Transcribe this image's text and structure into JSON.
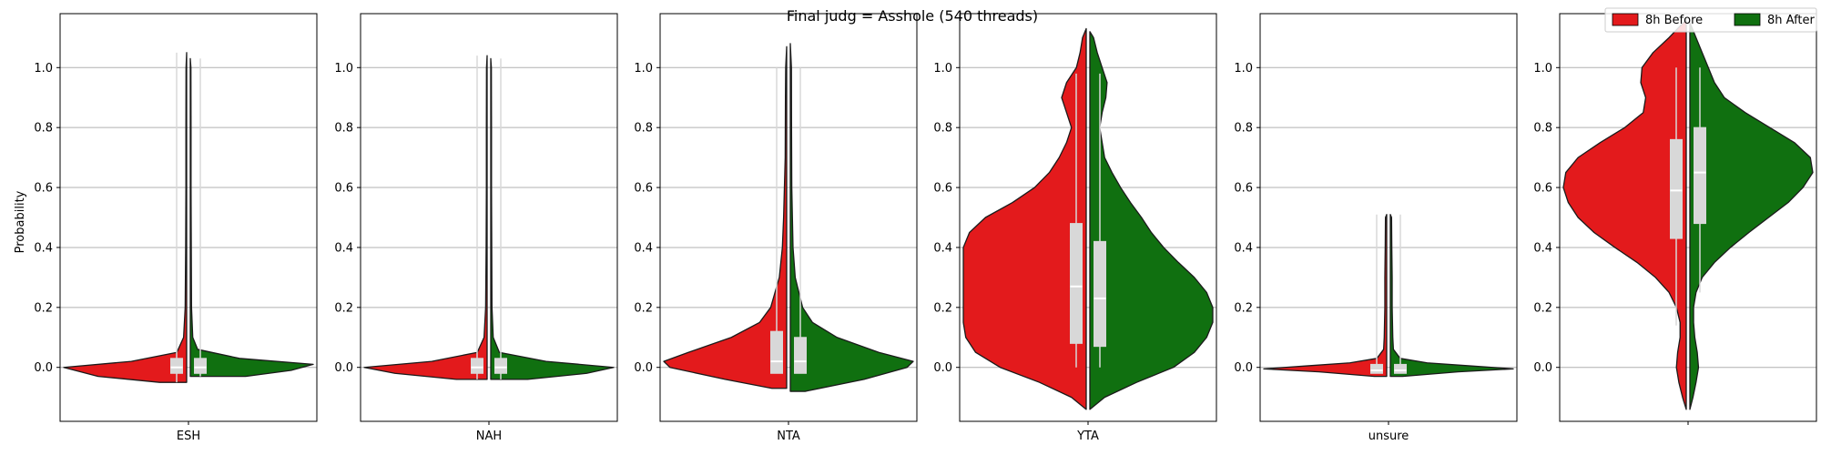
{
  "chart_data": {
    "type": "violin",
    "title": "Final judg = Asshole (540 threads)",
    "ylabel": "Probability",
    "ylim": [
      -0.18,
      1.18
    ],
    "yticks": [
      0.0,
      0.2,
      0.4,
      0.6,
      0.8,
      1.0
    ],
    "ytick_labels": [
      "0.0",
      "0.2",
      "0.4",
      "0.6",
      "0.8",
      "1.0"
    ],
    "grid": true,
    "legend": {
      "placement": "top-right",
      "entries": [
        {
          "label": "8h Before",
          "color": "#e31a1c"
        },
        {
          "label": "8h After",
          "color": "#107010"
        }
      ]
    },
    "panels": [
      {
        "category": "ESH",
        "before": {
          "median": 0.0,
          "q1": -0.02,
          "q3": 0.03,
          "min": -0.05,
          "max": 1.05,
          "profile": [
            [
              -0.05,
              0.22
            ],
            [
              -0.03,
              0.72
            ],
            [
              0.0,
              1.0
            ],
            [
              0.02,
              0.45
            ],
            [
              0.05,
              0.08
            ],
            [
              0.1,
              0.025
            ],
            [
              0.2,
              0.012
            ],
            [
              0.4,
              0.008
            ],
            [
              0.6,
              0.006
            ],
            [
              0.8,
              0.006
            ],
            [
              1.0,
              0.005
            ],
            [
              1.05,
              0.0
            ]
          ]
        },
        "after": {
          "median": 0.0,
          "q1": -0.02,
          "q3": 0.03,
          "min": -0.03,
          "max": 1.03,
          "profile": [
            [
              -0.03,
              0.45
            ],
            [
              -0.01,
              0.82
            ],
            [
              0.01,
              1.0
            ],
            [
              0.03,
              0.4
            ],
            [
              0.06,
              0.06
            ],
            [
              0.1,
              0.02
            ],
            [
              0.2,
              0.01
            ],
            [
              0.4,
              0.008
            ],
            [
              0.6,
              0.006
            ],
            [
              0.8,
              0.006
            ],
            [
              1.0,
              0.005
            ],
            [
              1.03,
              0.0
            ]
          ]
        }
      },
      {
        "category": "NAH",
        "before": {
          "median": 0.0,
          "q1": -0.02,
          "q3": 0.03,
          "min": -0.04,
          "max": 1.04,
          "profile": [
            [
              -0.04,
              0.25
            ],
            [
              -0.02,
              0.75
            ],
            [
              0.0,
              1.0
            ],
            [
              0.02,
              0.45
            ],
            [
              0.05,
              0.08
            ],
            [
              0.1,
              0.025
            ],
            [
              0.2,
              0.012
            ],
            [
              0.4,
              0.008
            ],
            [
              0.6,
              0.006
            ],
            [
              0.8,
              0.006
            ],
            [
              1.0,
              0.005
            ],
            [
              1.04,
              0.0
            ]
          ]
        },
        "after": {
          "median": 0.0,
          "q1": -0.02,
          "q3": 0.03,
          "min": -0.04,
          "max": 1.03,
          "profile": [
            [
              -0.04,
              0.3
            ],
            [
              -0.02,
              0.78
            ],
            [
              0.0,
              1.0
            ],
            [
              0.02,
              0.45
            ],
            [
              0.05,
              0.07
            ],
            [
              0.1,
              0.02
            ],
            [
              0.2,
              0.01
            ],
            [
              0.4,
              0.008
            ],
            [
              0.6,
              0.006
            ],
            [
              0.8,
              0.006
            ],
            [
              1.0,
              0.005
            ],
            [
              1.03,
              0.0
            ]
          ]
        }
      },
      {
        "category": "NTA",
        "before": {
          "median": 0.02,
          "q1": -0.02,
          "q3": 0.12,
          "min": -0.02,
          "max": 1.0,
          "profile": [
            [
              -0.07,
              0.12
            ],
            [
              -0.04,
              0.5
            ],
            [
              0.0,
              0.95
            ],
            [
              0.02,
              1.0
            ],
            [
              0.05,
              0.8
            ],
            [
              0.1,
              0.45
            ],
            [
              0.15,
              0.22
            ],
            [
              0.2,
              0.13
            ],
            [
              0.3,
              0.06
            ],
            [
              0.4,
              0.035
            ],
            [
              0.5,
              0.025
            ],
            [
              0.7,
              0.012
            ],
            [
              0.9,
              0.01
            ],
            [
              1.0,
              0.008
            ],
            [
              1.07,
              0.0
            ]
          ]
        },
        "after": {
          "median": 0.02,
          "q1": -0.02,
          "q3": 0.1,
          "min": -0.02,
          "max": 1.0,
          "profile": [
            [
              -0.08,
              0.12
            ],
            [
              -0.04,
              0.6
            ],
            [
              0.0,
              0.95
            ],
            [
              0.02,
              1.0
            ],
            [
              0.05,
              0.72
            ],
            [
              0.1,
              0.38
            ],
            [
              0.15,
              0.18
            ],
            [
              0.2,
              0.1
            ],
            [
              0.3,
              0.04
            ],
            [
              0.4,
              0.022
            ],
            [
              0.6,
              0.012
            ],
            [
              0.8,
              0.01
            ],
            [
              1.0,
              0.009
            ],
            [
              1.08,
              0.0
            ]
          ]
        }
      },
      {
        "category": "YTA",
        "before": {
          "median": 0.27,
          "q1": 0.08,
          "q3": 0.48,
          "min": 0.0,
          "max": 0.98,
          "profile": [
            [
              -0.14,
              0.0
            ],
            [
              -0.1,
              0.12
            ],
            [
              -0.05,
              0.38
            ],
            [
              0.0,
              0.7
            ],
            [
              0.05,
              0.9
            ],
            [
              0.1,
              0.98
            ],
            [
              0.15,
              1.0
            ],
            [
              0.2,
              1.0
            ],
            [
              0.25,
              1.0
            ],
            [
              0.3,
              1.0
            ],
            [
              0.35,
              1.0
            ],
            [
              0.4,
              1.0
            ],
            [
              0.45,
              0.95
            ],
            [
              0.5,
              0.82
            ],
            [
              0.55,
              0.6
            ],
            [
              0.6,
              0.42
            ],
            [
              0.65,
              0.3
            ],
            [
              0.7,
              0.22
            ],
            [
              0.75,
              0.16
            ],
            [
              0.8,
              0.12
            ],
            [
              0.85,
              0.16
            ],
            [
              0.9,
              0.2
            ],
            [
              0.95,
              0.16
            ],
            [
              1.0,
              0.08
            ],
            [
              1.05,
              0.05
            ],
            [
              1.1,
              0.03
            ],
            [
              1.13,
              0.0
            ]
          ]
        },
        "after": {
          "median": 0.23,
          "q1": 0.07,
          "q3": 0.42,
          "min": 0.0,
          "max": 0.98,
          "profile": [
            [
              -0.14,
              0.0
            ],
            [
              -0.1,
              0.12
            ],
            [
              -0.05,
              0.38
            ],
            [
              0.0,
              0.68
            ],
            [
              0.05,
              0.85
            ],
            [
              0.1,
              0.95
            ],
            [
              0.15,
              1.0
            ],
            [
              0.2,
              1.0
            ],
            [
              0.25,
              0.95
            ],
            [
              0.3,
              0.85
            ],
            [
              0.35,
              0.72
            ],
            [
              0.4,
              0.6
            ],
            [
              0.45,
              0.5
            ],
            [
              0.5,
              0.42
            ],
            [
              0.55,
              0.33
            ],
            [
              0.6,
              0.25
            ],
            [
              0.65,
              0.18
            ],
            [
              0.7,
              0.12
            ],
            [
              0.75,
              0.1
            ],
            [
              0.8,
              0.08
            ],
            [
              0.85,
              0.1
            ],
            [
              0.9,
              0.13
            ],
            [
              0.95,
              0.14
            ],
            [
              1.0,
              0.1
            ],
            [
              1.05,
              0.06
            ],
            [
              1.1,
              0.03
            ],
            [
              1.12,
              0.0
            ]
          ]
        }
      },
      {
        "category": "unsure",
        "before": {
          "median": -0.01,
          "q1": -0.02,
          "q3": 0.01,
          "min": -0.02,
          "max": 0.51,
          "profile": [
            [
              -0.03,
              0.1
            ],
            [
              -0.015,
              0.55
            ],
            [
              -0.005,
              1.0
            ],
            [
              0.005,
              0.65
            ],
            [
              0.015,
              0.3
            ],
            [
              0.03,
              0.08
            ],
            [
              0.06,
              0.025
            ],
            [
              0.1,
              0.02
            ],
            [
              0.2,
              0.015
            ],
            [
              0.3,
              0.015
            ],
            [
              0.4,
              0.012
            ],
            [
              0.5,
              0.01
            ],
            [
              0.51,
              0.0
            ]
          ]
        },
        "after": {
          "median": -0.01,
          "q1": -0.02,
          "q3": 0.01,
          "min": -0.02,
          "max": 0.51,
          "profile": [
            [
              -0.03,
              0.1
            ],
            [
              -0.015,
              0.55
            ],
            [
              -0.005,
              1.0
            ],
            [
              0.005,
              0.65
            ],
            [
              0.015,
              0.3
            ],
            [
              0.03,
              0.08
            ],
            [
              0.06,
              0.025
            ],
            [
              0.1,
              0.02
            ],
            [
              0.2,
              0.015
            ],
            [
              0.3,
              0.015
            ],
            [
              0.4,
              0.012
            ],
            [
              0.5,
              0.01
            ],
            [
              0.51,
              0.0
            ]
          ]
        }
      },
      {
        "category": "",
        "before": {
          "median": 0.59,
          "q1": 0.43,
          "q3": 0.76,
          "min": 0.14,
          "max": 1.0,
          "profile": [
            [
              -0.14,
              0.0
            ],
            [
              -0.1,
              0.03
            ],
            [
              -0.05,
              0.06
            ],
            [
              0.0,
              0.08
            ],
            [
              0.05,
              0.07
            ],
            [
              0.1,
              0.05
            ],
            [
              0.15,
              0.05
            ],
            [
              0.2,
              0.08
            ],
            [
              0.25,
              0.14
            ],
            [
              0.3,
              0.25
            ],
            [
              0.35,
              0.4
            ],
            [
              0.4,
              0.58
            ],
            [
              0.45,
              0.75
            ],
            [
              0.5,
              0.88
            ],
            [
              0.55,
              0.96
            ],
            [
              0.6,
              1.0
            ],
            [
              0.65,
              0.98
            ],
            [
              0.7,
              0.88
            ],
            [
              0.75,
              0.7
            ],
            [
              0.8,
              0.5
            ],
            [
              0.85,
              0.35
            ],
            [
              0.9,
              0.33
            ],
            [
              0.95,
              0.37
            ],
            [
              1.0,
              0.36
            ],
            [
              1.05,
              0.27
            ],
            [
              1.1,
              0.14
            ],
            [
              1.16,
              0.0
            ]
          ]
        },
        "after": {
          "median": 0.65,
          "q1": 0.48,
          "q3": 0.8,
          "min": 0.25,
          "max": 1.0,
          "profile": [
            [
              -0.14,
              0.0
            ],
            [
              -0.1,
              0.025
            ],
            [
              -0.05,
              0.05
            ],
            [
              0.0,
              0.07
            ],
            [
              0.05,
              0.06
            ],
            [
              0.1,
              0.04
            ],
            [
              0.15,
              0.03
            ],
            [
              0.2,
              0.03
            ],
            [
              0.25,
              0.05
            ],
            [
              0.3,
              0.1
            ],
            [
              0.35,
              0.2
            ],
            [
              0.4,
              0.33
            ],
            [
              0.45,
              0.48
            ],
            [
              0.5,
              0.64
            ],
            [
              0.55,
              0.8
            ],
            [
              0.6,
              0.92
            ],
            [
              0.65,
              1.0
            ],
            [
              0.7,
              0.98
            ],
            [
              0.75,
              0.85
            ],
            [
              0.8,
              0.65
            ],
            [
              0.85,
              0.45
            ],
            [
              0.9,
              0.28
            ],
            [
              0.95,
              0.2
            ],
            [
              1.0,
              0.15
            ],
            [
              1.05,
              0.1
            ],
            [
              1.1,
              0.05
            ],
            [
              1.15,
              0.0
            ]
          ]
        }
      }
    ]
  }
}
